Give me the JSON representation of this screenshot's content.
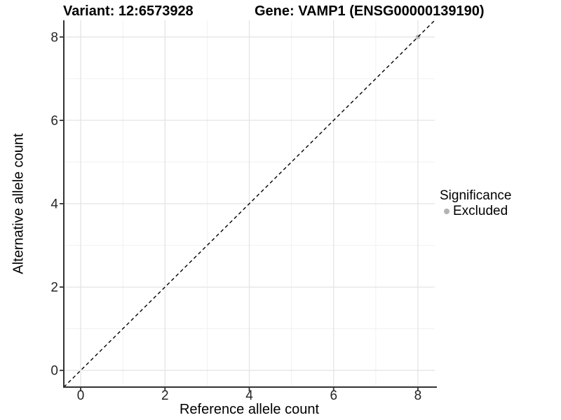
{
  "chart_data": {
    "type": "scatter",
    "title_left": "Variant: 12:6573928",
    "title_right": "Gene: VAMP1 (ENSG00000139190)",
    "xlabel": "Reference allele count",
    "ylabel": "Alternative allele count",
    "xlim": [
      -0.4,
      8.4
    ],
    "ylim": [
      -0.4,
      8.4
    ],
    "x_ticks": [
      0,
      2,
      4,
      6,
      8
    ],
    "y_ticks": [
      0,
      2,
      4,
      6,
      8
    ],
    "x_minor_gridlines": [
      1,
      3,
      5,
      7
    ],
    "y_minor_gridlines": [
      1,
      3,
      5,
      7
    ],
    "grid": "on",
    "legend": {
      "title": "Significance",
      "position": "right",
      "items": [
        {
          "label": "Excluded",
          "color": "#b3b3b3"
        }
      ]
    },
    "series": [
      {
        "name": "Excluded",
        "color": "#bdbdbd",
        "marker": "circle",
        "points": [
          {
            "x": 8,
            "y": 8
          }
        ]
      }
    ],
    "reference_line": {
      "kind": "identity",
      "slope": 1,
      "intercept": 0,
      "style": "dashed",
      "color": "#000000"
    },
    "style_colors": {
      "grid_major": "#e4e4e4",
      "grid_minor": "#f1f1f1",
      "axis_line": "#333333",
      "tick_text": "#262626"
    }
  }
}
